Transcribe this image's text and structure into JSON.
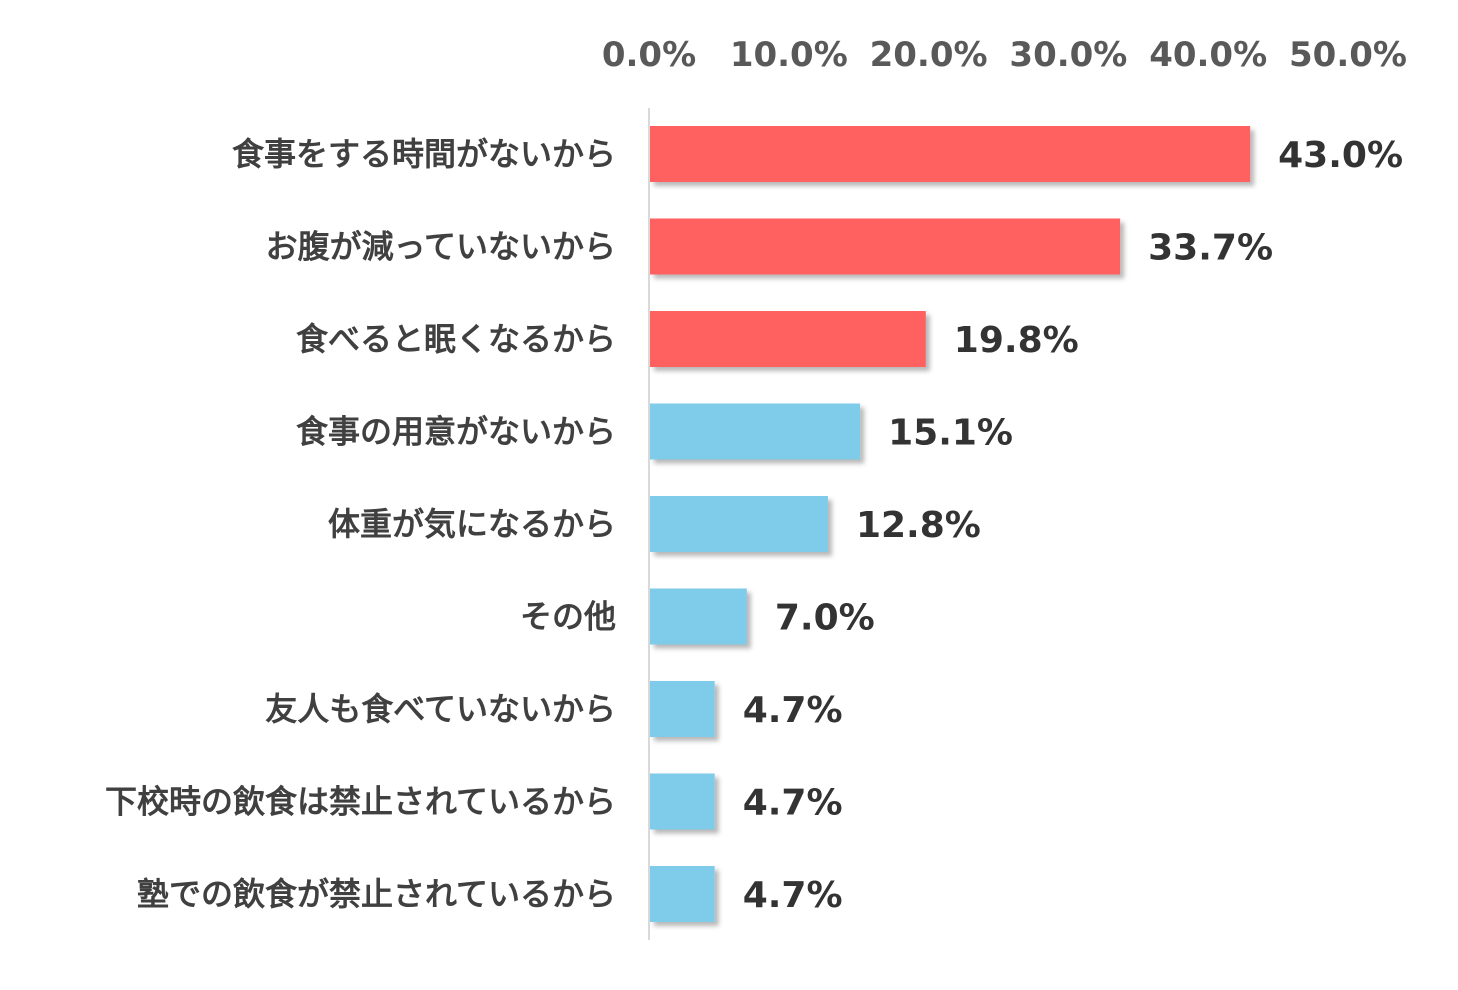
{
  "chart_data": {
    "type": "bar",
    "orientation": "horizontal",
    "categories": [
      "食事をする時間がないから",
      "お腹が減っていないから",
      "食べると眠くなるから",
      "食事の用意がないから",
      "体重が気になるから",
      "その他",
      "友人も食べていないから",
      "下校時の飲食は禁止されているから",
      "塾での飲食が禁止されているから"
    ],
    "values": [
      43.0,
      33.7,
      19.8,
      15.1,
      12.8,
      7.0,
      4.7,
      4.7,
      4.7
    ],
    "data_labels": [
      "43.0%",
      "33.7%",
      "19.8%",
      "15.1%",
      "12.8%",
      "7.0%",
      "4.7%",
      "4.7%",
      "4.7%"
    ],
    "bar_colors": [
      "#ff6161",
      "#ff6161",
      "#ff6161",
      "#7ecbea",
      "#7ecbea",
      "#7ecbea",
      "#7ecbea",
      "#7ecbea",
      "#7ecbea"
    ],
    "xlim": [
      0,
      50
    ],
    "x_ticks": [
      0,
      10,
      20,
      30,
      40,
      50
    ],
    "x_tick_labels": [
      "0.0%",
      "10.0%",
      "20.0%",
      "30.0%",
      "40.0%",
      "50.0%"
    ],
    "x_axis_position": "top",
    "grid": false,
    "legend": "none"
  }
}
